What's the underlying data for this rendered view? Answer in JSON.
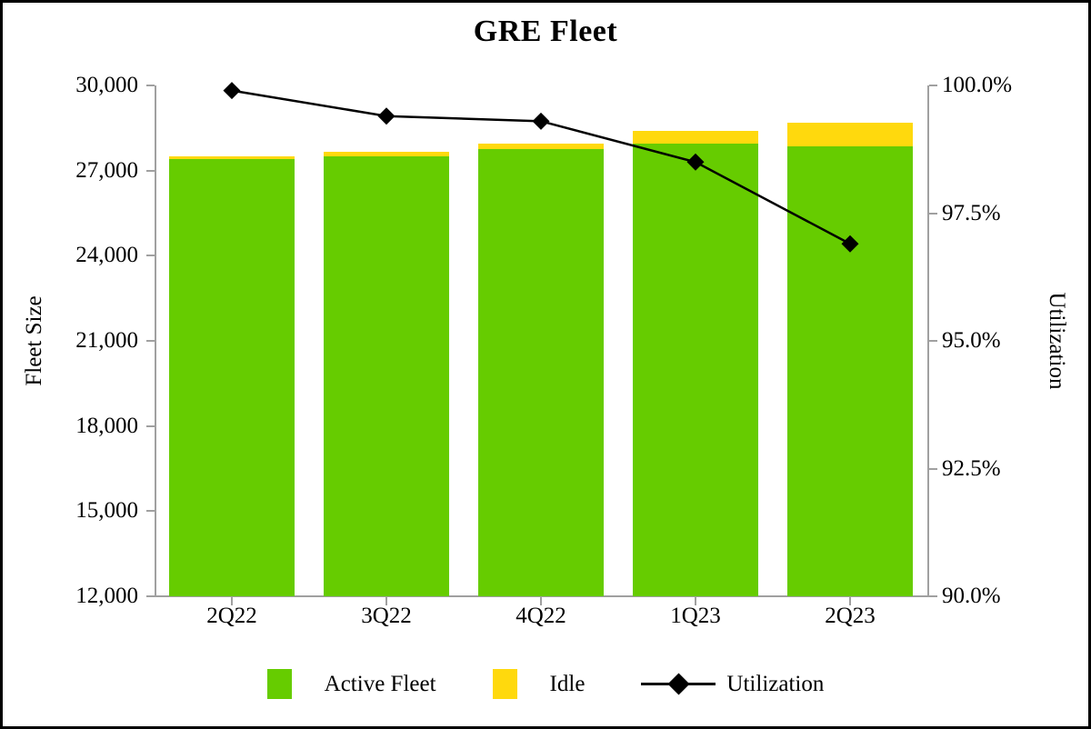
{
  "title": "GRE Fleet",
  "axes": {
    "left": {
      "title": "Fleet Size",
      "ticks": [
        {
          "label": "30,000",
          "value": 30000
        },
        {
          "label": "27,000",
          "value": 27000
        },
        {
          "label": "24,000",
          "value": 24000
        },
        {
          "label": "21,000",
          "value": 21000
        },
        {
          "label": "18,000",
          "value": 18000
        },
        {
          "label": "15,000",
          "value": 15000
        },
        {
          "label": "12,000",
          "value": 12000
        }
      ]
    },
    "right": {
      "title": "Utilization",
      "ticks": [
        {
          "label": "100.0%",
          "value": 100
        },
        {
          "label": "97.5%",
          "value": 97.5
        },
        {
          "label": "95.0%",
          "value": 95
        },
        {
          "label": "92.5%",
          "value": 92.5
        },
        {
          "label": "90.0%",
          "value": 90
        }
      ]
    },
    "x": {
      "categories": [
        "2Q22",
        "3Q22",
        "4Q22",
        "1Q23",
        "2Q23"
      ]
    }
  },
  "legend": {
    "items": [
      {
        "label": "Active Fleet",
        "marker": "swatch",
        "color": "#66CC00"
      },
      {
        "label": "Idle",
        "marker": "swatch",
        "color": "#FFD90D"
      },
      {
        "label": "Utilization",
        "marker": "line-diamond",
        "color": "#000000"
      }
    ]
  },
  "colors": {
    "active_fleet": "#66CC00",
    "idle": "#FFD90D",
    "utilization_line": "#000000",
    "axis_line": "#A0A0A0",
    "text": "#000000",
    "background": "#FFFFFF",
    "frame": "#000000"
  },
  "chart_data": {
    "type": "combo",
    "title": "GRE Fleet",
    "categories": [
      "2Q22",
      "3Q22",
      "4Q22",
      "1Q23",
      "2Q23"
    ],
    "series": [
      {
        "name": "Active Fleet",
        "type": "bar",
        "stack": "fleet",
        "axis": "left",
        "color": "#66CC00",
        "values": [
          27400,
          27500,
          27750,
          27950,
          27850
        ]
      },
      {
        "name": "Idle",
        "type": "bar",
        "stack": "fleet",
        "axis": "left",
        "color": "#FFD90D",
        "values": [
          100,
          150,
          200,
          450,
          850
        ]
      },
      {
        "name": "Utilization",
        "type": "line",
        "axis": "right",
        "marker": "diamond",
        "color": "#000000",
        "values": [
          99.9,
          99.4,
          99.3,
          98.5,
          96.9
        ]
      }
    ],
    "left_axis_label": "Fleet Size",
    "right_axis_label": "Utilization",
    "left_ylim": [
      12000,
      30000
    ],
    "right_ylim": [
      90,
      100
    ],
    "left_tick_step": 3000,
    "right_tick_step": 2.5,
    "grid": false,
    "legend_position": "bottom"
  }
}
